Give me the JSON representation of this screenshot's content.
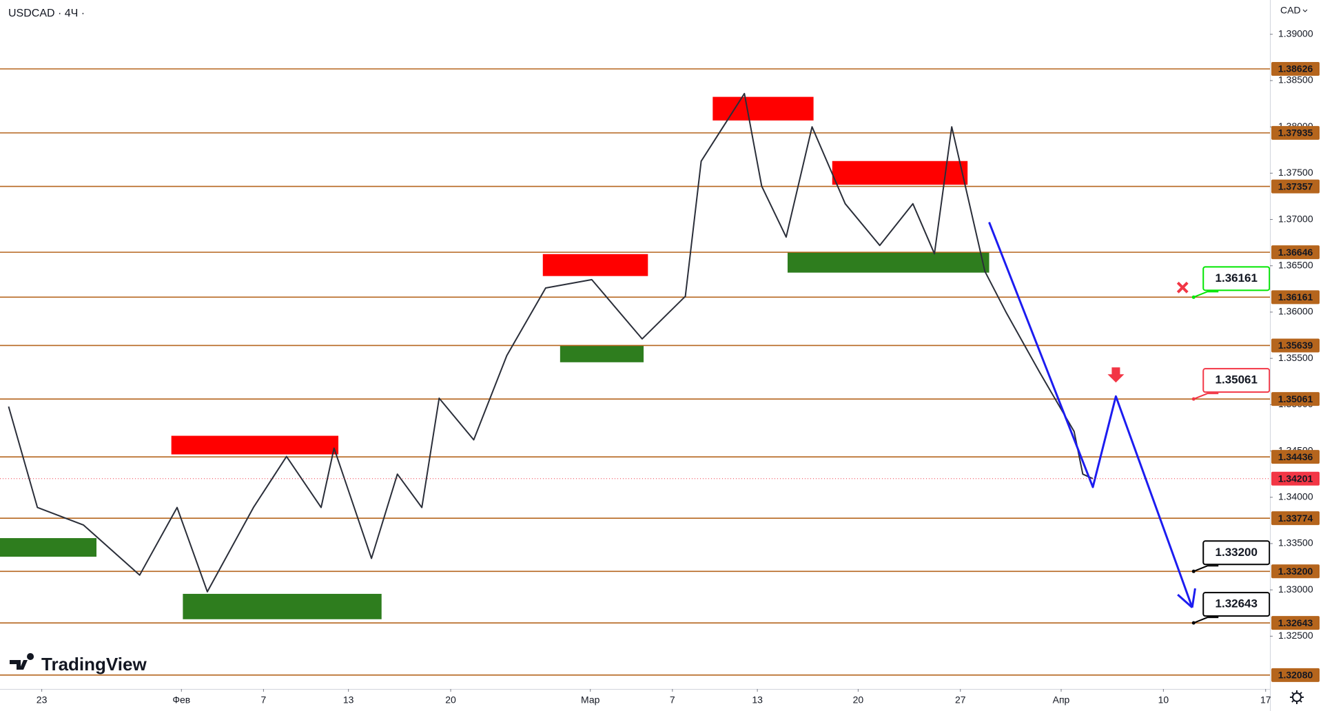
{
  "symbol_title": "USDCAD · 4Ч ·",
  "currency": "CAD",
  "watermark": "TradingView",
  "chart_data": {
    "type": "line",
    "xlim": [
      -2.9,
      85.3
    ],
    "ylim": [
      1.3193,
      1.3937
    ],
    "xticks": [
      {
        "value": 0,
        "label": "23"
      },
      {
        "value": 9.7,
        "label": "Фев"
      },
      {
        "value": 15.4,
        "label": "7"
      },
      {
        "value": 21.3,
        "label": "13"
      },
      {
        "value": 28.4,
        "label": "20"
      },
      {
        "value": 38.1,
        "label": "Мар"
      },
      {
        "value": 43.8,
        "label": "7"
      },
      {
        "value": 49.7,
        "label": "13"
      },
      {
        "value": 56.7,
        "label": "20"
      },
      {
        "value": 63.8,
        "label": "27"
      },
      {
        "value": 70.8,
        "label": "Апр"
      },
      {
        "value": 77.9,
        "label": "10"
      },
      {
        "value": 85,
        "label": "17"
      }
    ],
    "yticks": [
      {
        "value": 1.39,
        "label": "1.39000"
      },
      {
        "value": 1.385,
        "label": "1.38500"
      },
      {
        "value": 1.38,
        "label": "1.38000"
      },
      {
        "value": 1.375,
        "label": "1.37500"
      },
      {
        "value": 1.37,
        "label": "1.37000"
      },
      {
        "value": 1.365,
        "label": "1.36500"
      },
      {
        "value": 1.36,
        "label": "1.36000"
      },
      {
        "value": 1.355,
        "label": "1.35500"
      },
      {
        "value": 1.35,
        "label": "1.35000"
      },
      {
        "value": 1.345,
        "label": "1.34500"
      },
      {
        "value": 1.34,
        "label": "1.34000"
      },
      {
        "value": 1.335,
        "label": "1.33500"
      },
      {
        "value": 1.33,
        "label": "1.33000"
      },
      {
        "value": 1.325,
        "label": "1.32500"
      }
    ],
    "series": [
      {
        "color": "#2a2e39",
        "x": [
          -2.3,
          -0.3,
          2.9,
          6.8,
          9.4,
          11.5,
          14.7,
          17.0,
          19.4,
          20.3,
          22.9,
          24.7,
          26.4,
          27.6,
          30.0,
          32.3,
          35.0,
          38.2,
          41.7,
          44.7,
          45.8,
          48.8,
          50.0,
          51.7,
          53.5,
          55.8,
          58.2,
          60.5,
          62.0,
          63.2,
          65.5,
          67.0,
          69.3,
          71.7,
          72.3,
          73.0
        ],
        "values": [
          1.3498,
          1.3389,
          1.337,
          1.3316,
          1.3389,
          1.3298,
          1.3389,
          1.3444,
          1.3389,
          1.3453,
          1.3334,
          1.3425,
          1.3389,
          1.3507,
          1.3462,
          1.3553,
          1.3626,
          1.3635,
          1.3571,
          1.3617,
          1.3763,
          1.3836,
          1.3736,
          1.3681,
          1.38,
          1.3717,
          1.3672,
          1.3717,
          1.3663,
          1.38,
          1.3644,
          1.3599,
          1.3535,
          1.3471,
          1.3425,
          1.34201
        ]
      },
      {
        "color": "#1c1cf0",
        "x": [
          65.8,
          73.0,
          74.6,
          79.9
        ],
        "values": [
          1.3697,
          1.3411,
          1.3509,
          1.3281
        ]
      }
    ],
    "levels": [
      1.38626,
      1.37935,
      1.37357,
      1.36646,
      1.36161,
      1.35639,
      1.35061,
      1.34436,
      1.33774,
      {
        "value": 1.332,
        "label": "1.33200"
      },
      1.32643,
      {
        "value": 1.3208,
        "label": "1.32080"
      }
    ],
    "level_color": "#b5651d",
    "last_color": "#f23645",
    "zones": [
      {
        "x": [
          46.6,
          53.6
        ],
        "y": [
          1.38069,
          1.38324
        ],
        "color": "#ff0000"
      },
      {
        "x": [
          54.9,
          64.3
        ],
        "y": [
          1.37375,
          1.37631
        ],
        "color": "#ff0000"
      },
      {
        "x": [
          34.8,
          42.1
        ],
        "y": [
          1.36389,
          1.36626
        ],
        "color": "#ff0000"
      },
      {
        "x": [
          9.0,
          20.6
        ],
        "y": [
          1.34463,
          1.34664
        ],
        "color": "#ff0000"
      },
      {
        "x": [
          51.8,
          65.8
        ],
        "y": [
          1.36426,
          1.36645
        ],
        "color": "#2e7d1e"
      },
      {
        "x": [
          36.0,
          41.8
        ],
        "y": [
          1.35458,
          1.3564
        ],
        "color": "#2e7d1e"
      },
      {
        "x": [
          -2.9,
          3.8
        ],
        "y": [
          1.33358,
          1.33559
        ],
        "color": "#2e7d1e"
      },
      {
        "x": [
          9.8,
          23.6
        ],
        "y": [
          1.32683,
          1.32957
        ],
        "color": "#2e7d1e"
      }
    ],
    "annotations": [
      {
        "x": 80.0,
        "price": 1.36161,
        "color": "#00e600",
        "invalidated": true
      },
      {
        "x": 80.0,
        "price": 1.35061,
        "color": "#f23645"
      },
      {
        "x": 80.0,
        "price": {
          "value": 1.332,
          "label": "1.33200"
        },
        "color": "#000000"
      },
      {
        "x": 80.0,
        "price": 1.32643,
        "color": "#000000"
      }
    ]
  }
}
